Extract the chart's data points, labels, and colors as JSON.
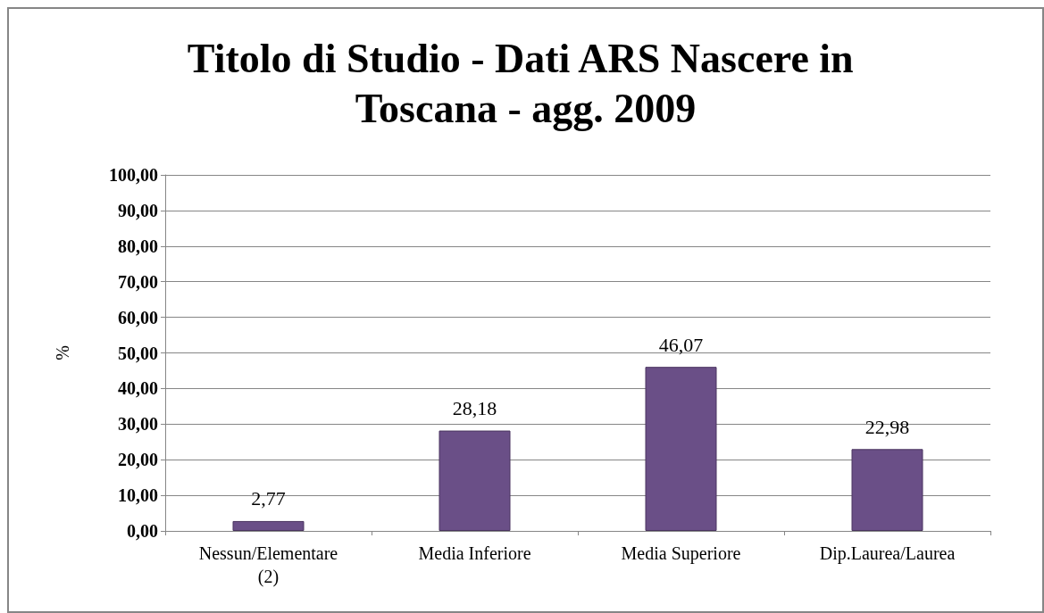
{
  "chart_data": {
    "type": "bar",
    "title": "Titolo di Studio - Dati ARS Nascere in Toscana - agg. 2009",
    "ylabel": "%",
    "categories": [
      "Nessun/Elementare (2)",
      "Media Inferiore",
      "Media Superiore",
      "Dip.Laurea/Laurea"
    ],
    "values": [
      2.77,
      28.18,
      46.07,
      22.98
    ],
    "value_labels": [
      "2,77",
      "28,18",
      "46,07",
      "22,98"
    ],
    "color": "#6a4f87",
    "ylim": [
      0,
      100
    ],
    "yticks": [
      {
        "value": 0,
        "label": "0,00"
      },
      {
        "value": 10,
        "label": "10,00"
      },
      {
        "value": 20,
        "label": "20,00"
      },
      {
        "value": 30,
        "label": "30,00"
      },
      {
        "value": 40,
        "label": "40,00"
      },
      {
        "value": 50,
        "label": "50,00"
      },
      {
        "value": 60,
        "label": "60,00"
      },
      {
        "value": 70,
        "label": "70,00"
      },
      {
        "value": 80,
        "label": "80,00"
      },
      {
        "value": 90,
        "label": "90,00"
      },
      {
        "value": 100,
        "label": "100,00"
      }
    ],
    "grid": "y"
  }
}
